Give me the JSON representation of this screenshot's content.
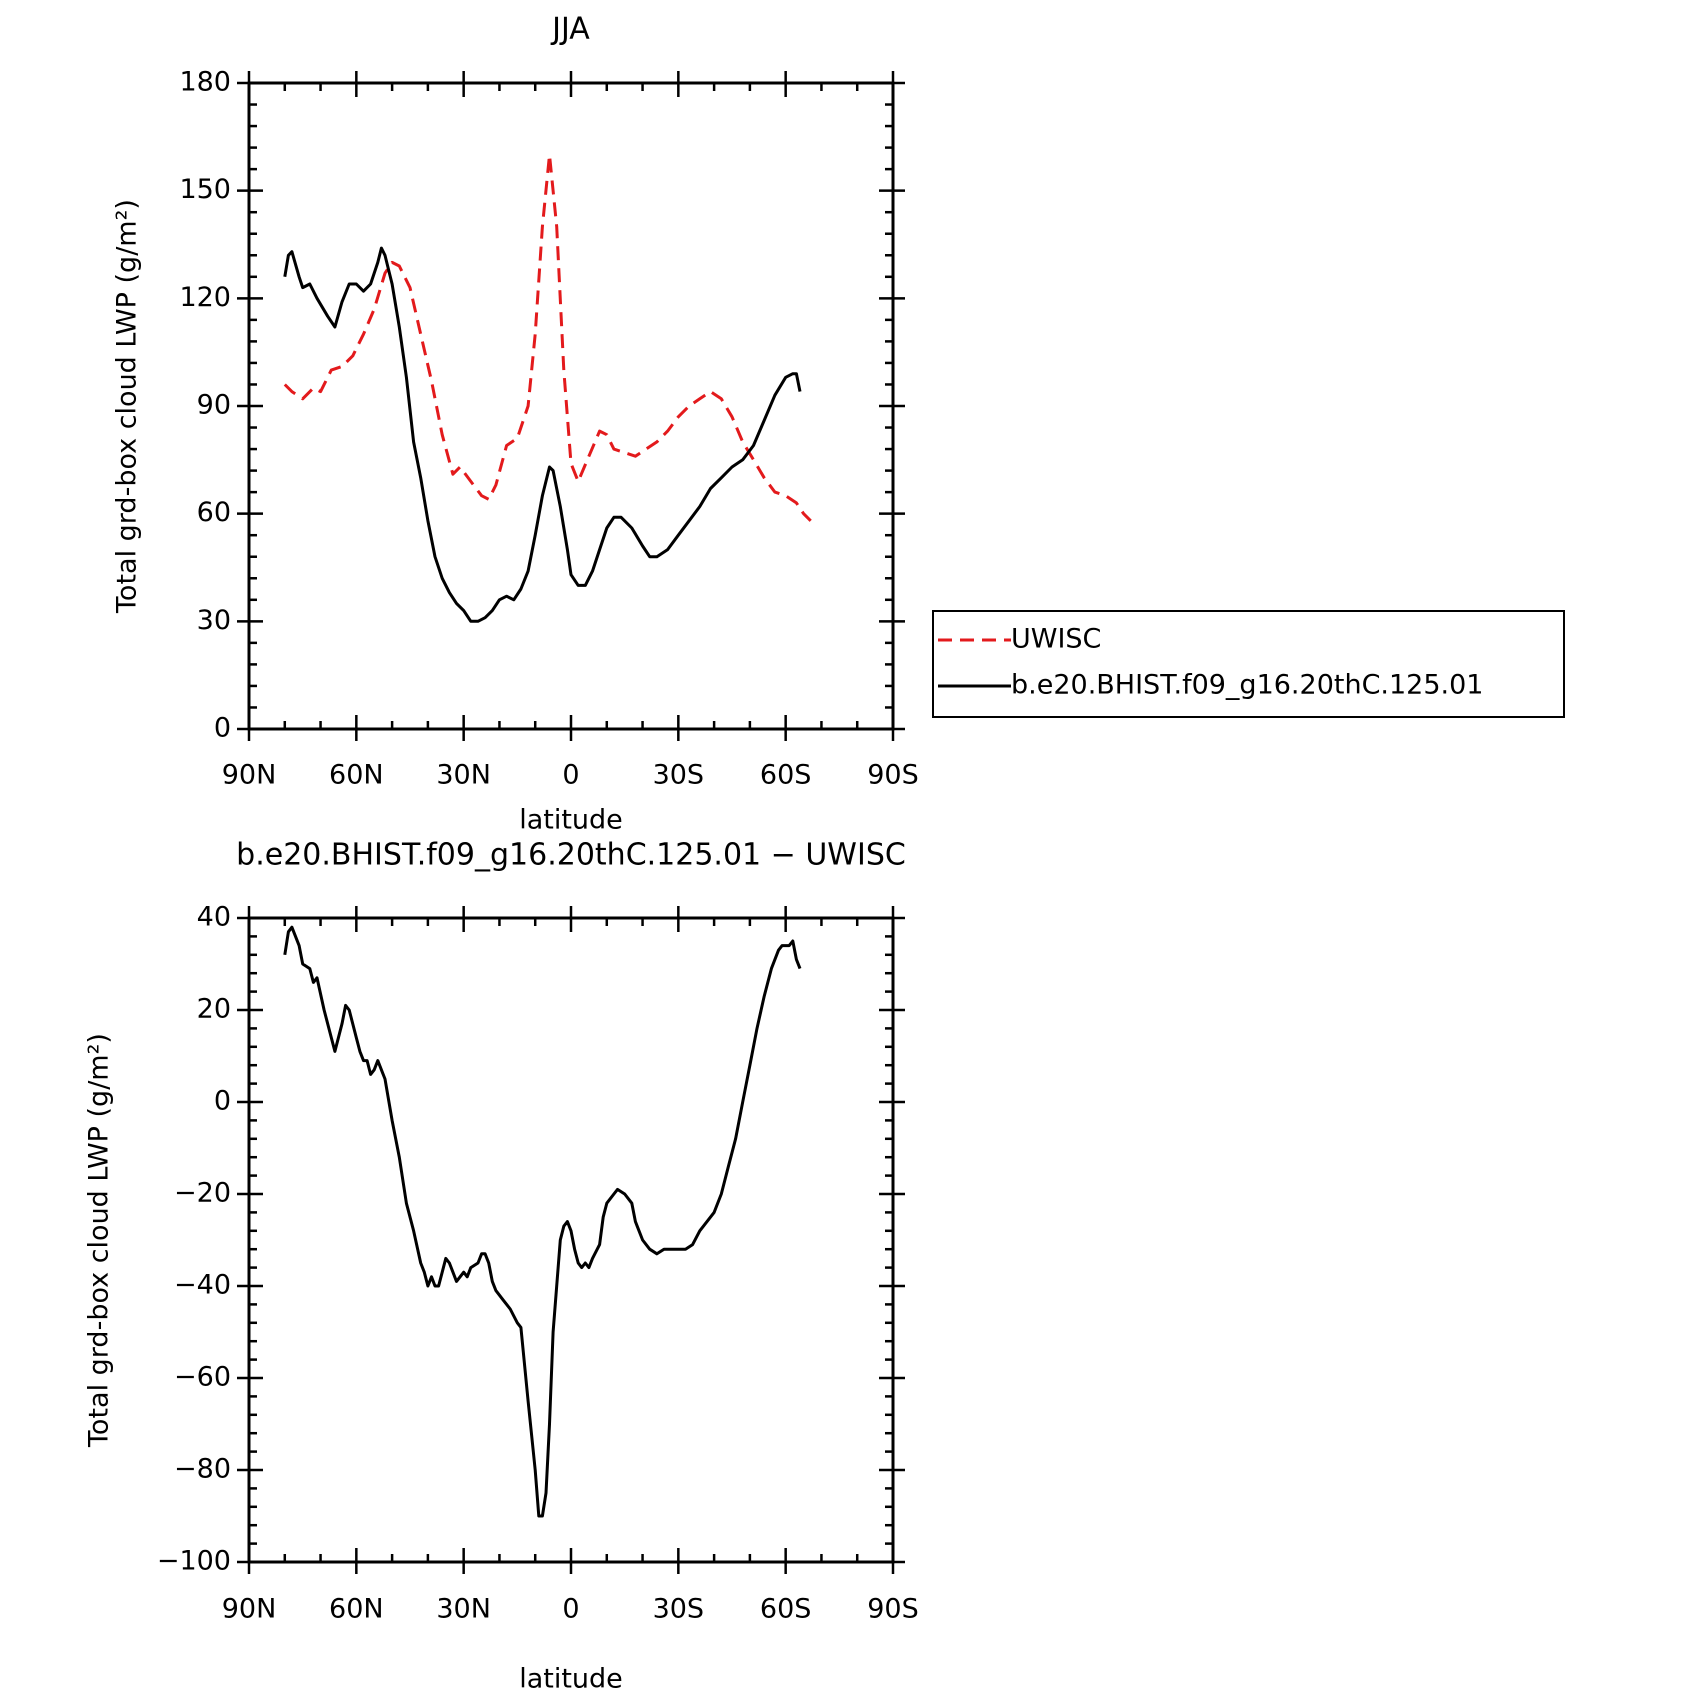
{
  "chart_data": [
    {
      "type": "line",
      "title": "JJA",
      "ylabel": "Total grd-box cloud LWP (g/m²)",
      "xlabel": "latitude",
      "xlim": [
        90,
        -90
      ],
      "xticks": [
        {
          "value": 90,
          "label": "90N"
        },
        {
          "value": 60,
          "label": "60N"
        },
        {
          "value": 30,
          "label": "30N"
        },
        {
          "value": 0,
          "label": "0"
        },
        {
          "value": -30,
          "label": "30S"
        },
        {
          "value": -60,
          "label": "60S"
        },
        {
          "value": -90,
          "label": "90S"
        }
      ],
      "ylim": [
        0,
        180
      ],
      "yticks": [
        0,
        30,
        60,
        90,
        120,
        150,
        180
      ],
      "legend": "right",
      "series": [
        {
          "name": "UWISC",
          "color": "#e31a1c",
          "style": "dashed",
          "x": [
            80,
            78,
            75,
            72,
            70,
            67,
            64,
            61,
            58,
            55,
            52,
            50,
            48,
            45,
            42,
            39,
            36,
            33,
            31,
            28,
            25,
            23,
            21,
            18,
            15,
            12,
            10,
            8,
            6,
            4,
            2,
            0,
            -2,
            -5,
            -8,
            -10,
            -12,
            -15,
            -18,
            -21,
            -24,
            -27,
            -30,
            -33,
            -36,
            -39,
            -42,
            -45,
            -48,
            -51,
            -54,
            -57,
            -60,
            -63,
            -65,
            -67
          ],
          "values": [
            96,
            94,
            92,
            95,
            94,
            100,
            101,
            104,
            110,
            117,
            127,
            130,
            129,
            123,
            110,
            97,
            82,
            71,
            73,
            69,
            65,
            64,
            68,
            79,
            81,
            90,
            110,
            140,
            160,
            140,
            100,
            74,
            69,
            76,
            83,
            82,
            78,
            77,
            76,
            78,
            80,
            83,
            87,
            90,
            92,
            94,
            92,
            87,
            80,
            75,
            70,
            66,
            65,
            63,
            60,
            58
          ]
        },
        {
          "name": "b.e20.BHIST.f09_g16.20thC.125.01",
          "color": "#000000",
          "style": "solid",
          "x": [
            80,
            79,
            78,
            76,
            75,
            73,
            71,
            68,
            66,
            64,
            62,
            60,
            58,
            56,
            54,
            53,
            52,
            50,
            48,
            46,
            44,
            42,
            40,
            38,
            36,
            34,
            32,
            30,
            28,
            26,
            24,
            22,
            20,
            18,
            16,
            14,
            12,
            10,
            8,
            6,
            5,
            3,
            1,
            0,
            -2,
            -4,
            -6,
            -8,
            -10,
            -12,
            -14,
            -17,
            -20,
            -22,
            -24,
            -27,
            -30,
            -33,
            -36,
            -39,
            -42,
            -45,
            -48,
            -51,
            -54,
            -57,
            -60,
            -62,
            -63,
            -64
          ],
          "values": [
            126,
            132,
            133,
            126,
            123,
            124,
            120,
            115,
            112,
            119,
            124,
            124,
            122,
            124,
            130,
            134,
            132,
            124,
            112,
            98,
            80,
            70,
            58,
            48,
            42,
            38,
            35,
            33,
            30,
            30,
            31,
            33,
            36,
            37,
            36,
            39,
            44,
            54,
            65,
            73,
            72,
            62,
            50,
            43,
            40,
            40,
            44,
            50,
            56,
            59,
            59,
            56,
            51,
            48,
            48,
            50,
            54,
            58,
            62,
            67,
            70,
            73,
            75,
            79,
            86,
            93,
            98,
            99,
            99,
            94
          ]
        }
      ]
    },
    {
      "type": "line",
      "title": "b.e20.BHIST.f09_g16.20thC.125.01 − UWISC",
      "ylabel": "Total grd-box cloud LWP (g/m²)",
      "xlabel": "latitude",
      "xlim": [
        90,
        -90
      ],
      "xticks": [
        {
          "value": 90,
          "label": "90N"
        },
        {
          "value": 60,
          "label": "60N"
        },
        {
          "value": 30,
          "label": "30N"
        },
        {
          "value": 0,
          "label": "0"
        },
        {
          "value": -30,
          "label": "30S"
        },
        {
          "value": -60,
          "label": "60S"
        },
        {
          "value": -90,
          "label": "90S"
        }
      ],
      "ylim": [
        -100,
        40
      ],
      "yticks": [
        {
          "value": -100,
          "label": "−100"
        },
        {
          "value": -80,
          "label": "−80"
        },
        {
          "value": -60,
          "label": "−60"
        },
        {
          "value": -40,
          "label": "−40"
        },
        {
          "value": -20,
          "label": "−20"
        },
        0,
        20,
        40
      ],
      "series": [
        {
          "color": "#000000",
          "style": "solid",
          "x": [
            80,
            79,
            78,
            76,
            75,
            73,
            72,
            71,
            69,
            67,
            66,
            64,
            63,
            62,
            60,
            59,
            58,
            57,
            56,
            55,
            54,
            52,
            50,
            48,
            46,
            44,
            42,
            41,
            40,
            39,
            38,
            37,
            35,
            34,
            32,
            31,
            30,
            29,
            28,
            26,
            25,
            24,
            23,
            22,
            21,
            19,
            17,
            15,
            14,
            12,
            10,
            9,
            8,
            7,
            6,
            5,
            4,
            3,
            2,
            1,
            0,
            -1,
            -2,
            -3,
            -4,
            -5,
            -6,
            -8,
            -9,
            -10,
            -12,
            -13,
            -15,
            -17,
            -18,
            -20,
            -22,
            -24,
            -26,
            -28,
            -30,
            -32,
            -34,
            -36,
            -38,
            -40,
            -42,
            -44,
            -46,
            -48,
            -50,
            -52,
            -54,
            -56,
            -58,
            -59,
            -61,
            -62,
            -63,
            -64
          ],
          "values": [
            32,
            37,
            38,
            34,
            30,
            29,
            26,
            27,
            20,
            14,
            11,
            17,
            21,
            20,
            14,
            11,
            9,
            9,
            6,
            7,
            9,
            5,
            -4,
            -12,
            -22,
            -28,
            -35,
            -37,
            -40,
            -38,
            -40,
            -40,
            -34,
            -35,
            -39,
            -38,
            -37,
            -38,
            -36,
            -35,
            -33,
            -33,
            -35,
            -39,
            -41,
            -43,
            -45,
            -48,
            -49,
            -65,
            -80,
            -90,
            -90,
            -85,
            -70,
            -50,
            -40,
            -30,
            -27,
            -26,
            -28,
            -32,
            -35,
            -36,
            -35,
            -36,
            -34,
            -31,
            -25,
            -22,
            -20,
            -19,
            -20,
            -22,
            -26,
            -30,
            -32,
            -33,
            -32,
            -32,
            -32,
            -32,
            -31,
            -28,
            -26,
            -24,
            -20,
            -14,
            -8,
            0,
            8,
            16,
            23,
            29,
            33,
            34,
            34,
            35,
            31,
            29
          ]
        }
      ]
    }
  ]
}
